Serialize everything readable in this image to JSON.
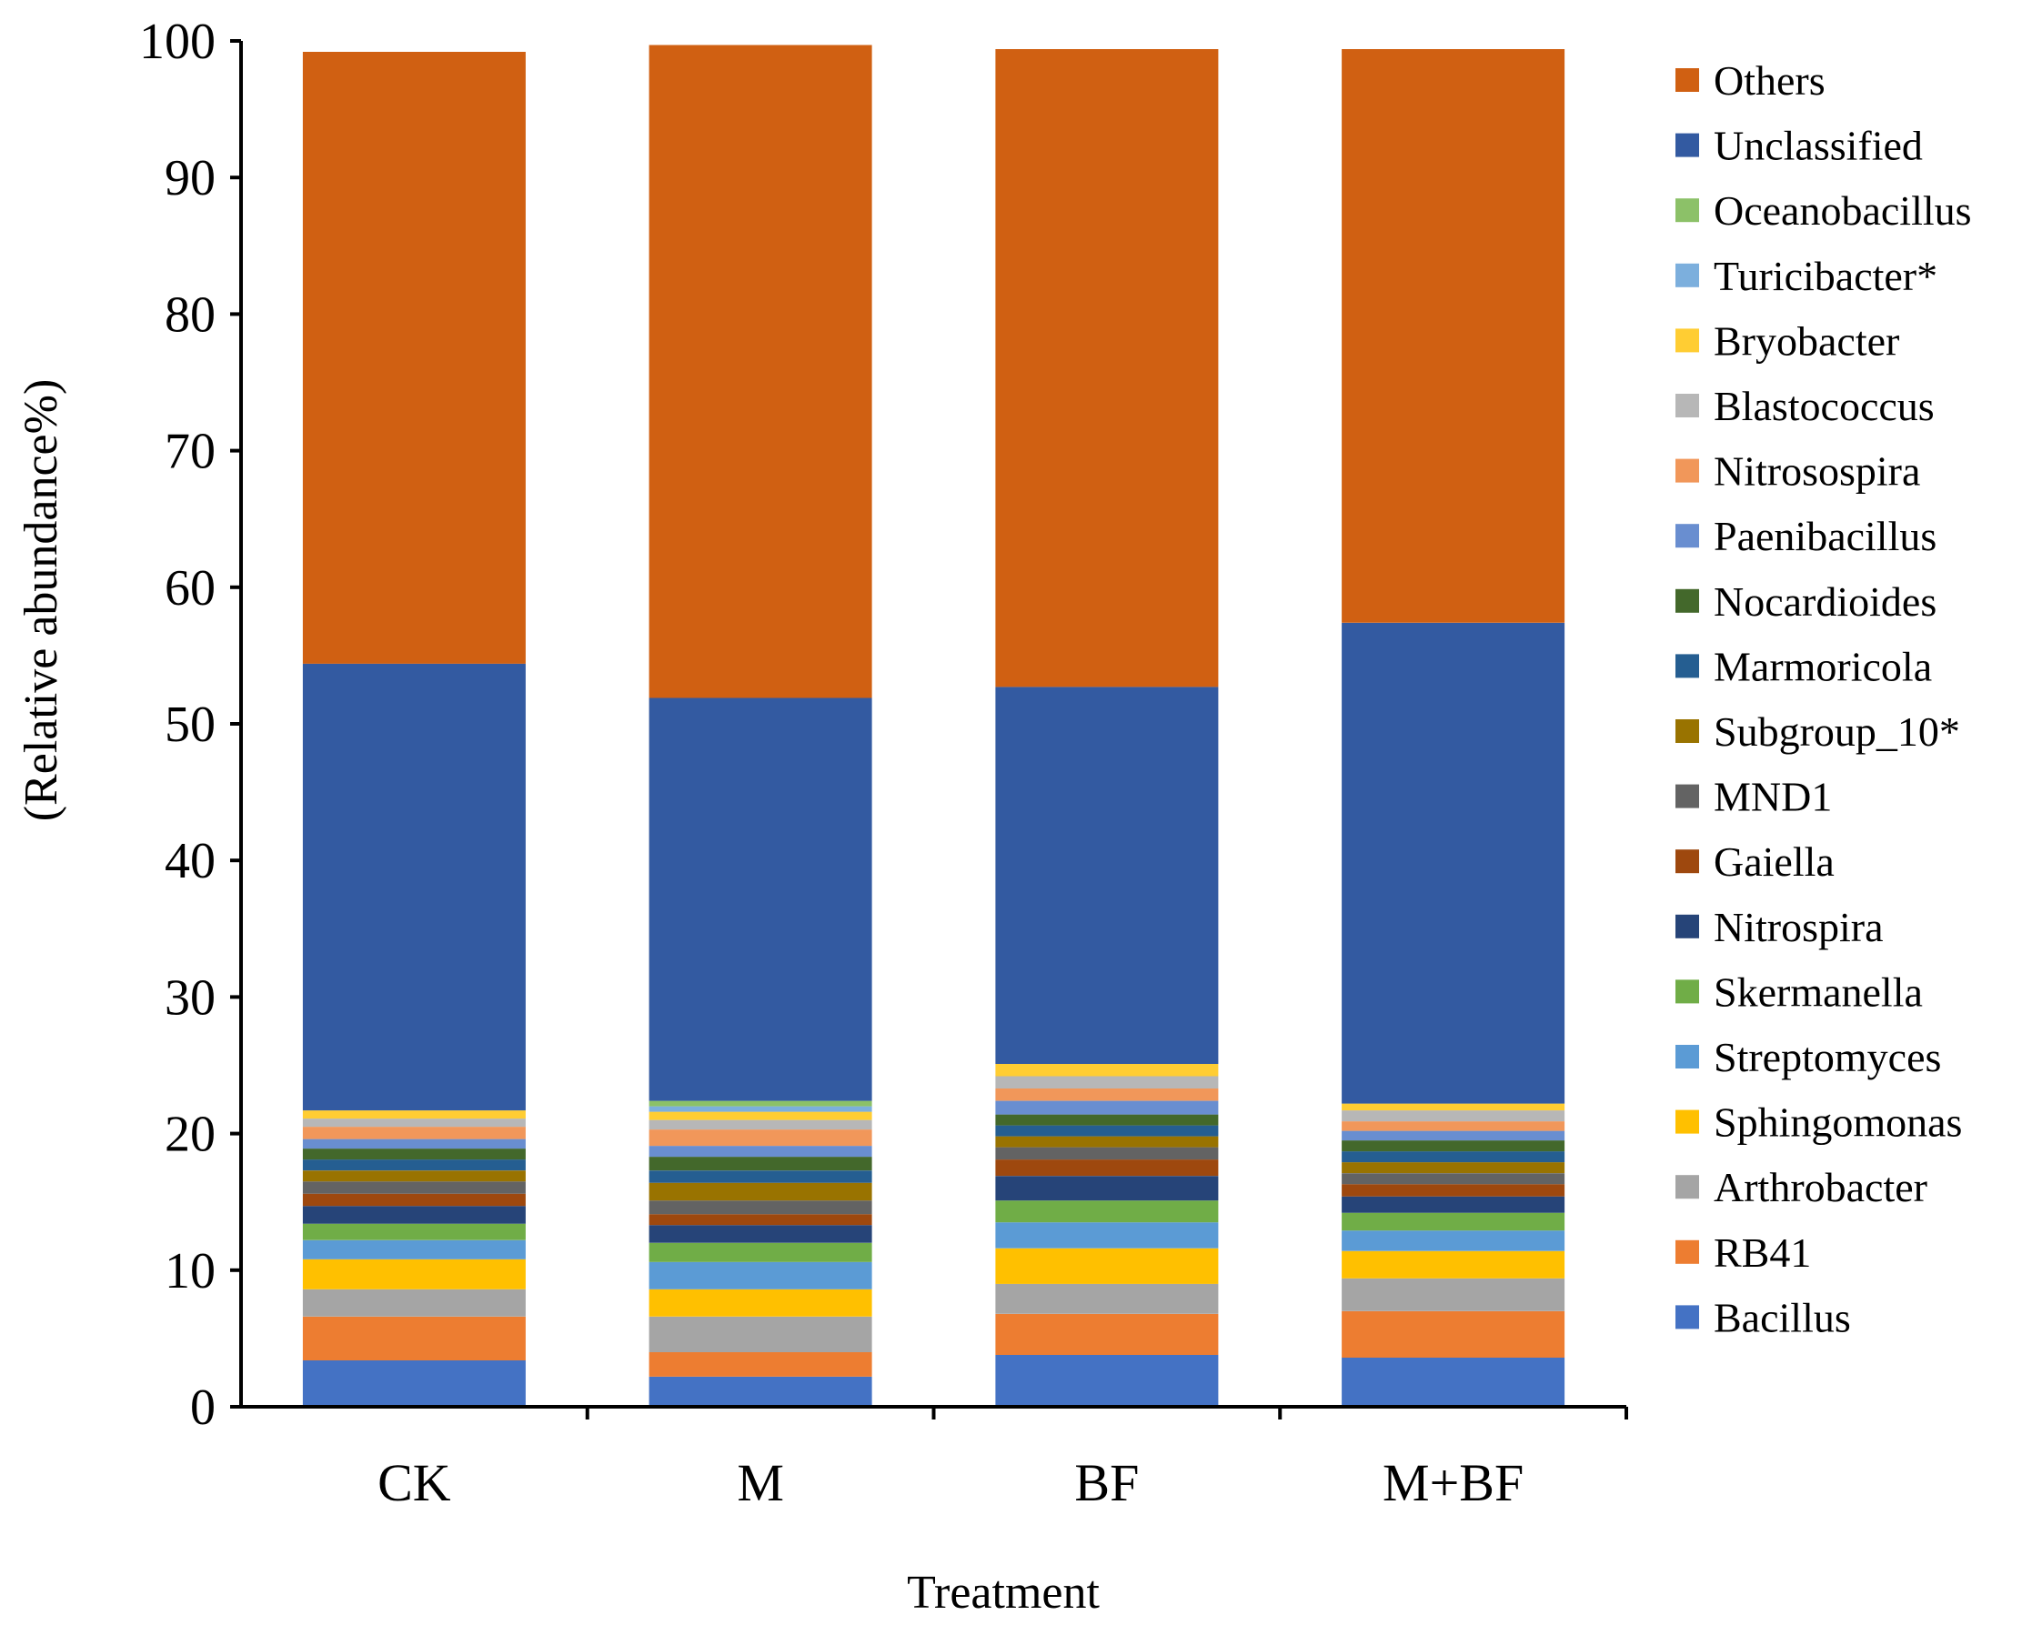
{
  "chart_data": {
    "type": "bar",
    "stacked": true,
    "title": "",
    "xlabel": "Treatment",
    "ylabel": "(Relative abundance%)",
    "ylim": [
      0,
      100
    ],
    "yticks": [
      "0",
      "10",
      "20",
      "30",
      "40",
      "50",
      "60",
      "70",
      "80",
      "90",
      "100"
    ],
    "legend_position": "right",
    "categories": [
      "CK",
      "M",
      "BF",
      "M+BF"
    ],
    "series": [
      {
        "name": "Bacillus",
        "color": "#4472C4",
        "values": [
          3.4,
          2.2,
          3.8,
          3.6
        ]
      },
      {
        "name": "RB41",
        "color": "#ED7D31",
        "values": [
          3.2,
          1.8,
          3.0,
          3.4
        ]
      },
      {
        "name": "Arthrobacter",
        "color": "#A5A5A5",
        "values": [
          2.0,
          2.6,
          2.2,
          2.4
        ]
      },
      {
        "name": "Sphingomonas",
        "color": "#FFC000",
        "values": [
          2.2,
          2.0,
          2.6,
          2.0
        ]
      },
      {
        "name": "Streptomyces",
        "color": "#5B9BD5",
        "values": [
          1.4,
          2.0,
          1.9,
          1.5
        ]
      },
      {
        "name": "Skermanella",
        "color": "#70AD47",
        "values": [
          1.2,
          1.4,
          1.6,
          1.3
        ]
      },
      {
        "name": "Nitrospira",
        "color": "#264478",
        "values": [
          1.3,
          1.3,
          1.8,
          1.2
        ]
      },
      {
        "name": "Gaiella",
        "color": "#9E480E",
        "values": [
          0.9,
          0.8,
          1.2,
          0.9
        ]
      },
      {
        "name": "MND1",
        "color": "#636363",
        "values": [
          0.9,
          1.0,
          0.9,
          0.8
        ]
      },
      {
        "name": "Subgroup_10*",
        "color": "#997300",
        "values": [
          0.8,
          1.3,
          0.8,
          0.8
        ]
      },
      {
        "name": "Marmoricola",
        "color": "#255E91",
        "values": [
          0.8,
          0.9,
          0.8,
          0.8
        ]
      },
      {
        "name": "Nocardioides",
        "color": "#43682B",
        "values": [
          0.8,
          1.0,
          0.8,
          0.8
        ]
      },
      {
        "name": "Paenibacillus",
        "color": "#698ED0",
        "values": [
          0.7,
          0.8,
          1.0,
          0.7
        ]
      },
      {
        "name": "Nitrosospira",
        "color": "#F1975A",
        "values": [
          0.9,
          1.2,
          0.9,
          0.7
        ]
      },
      {
        "name": "Blastococcus",
        "color": "#B7B7B7",
        "values": [
          0.6,
          0.7,
          0.9,
          0.8
        ]
      },
      {
        "name": "Bryobacter",
        "color": "#FFCD33",
        "values": [
          0.6,
          0.6,
          0.9,
          0.5
        ]
      },
      {
        "name": "Turicibacter*",
        "color": "#7CAFDD",
        "values": [
          0.0,
          0.4,
          0.0,
          0.0
        ]
      },
      {
        "name": "Oceanobacillus",
        "color": "#8CC168",
        "values": [
          0.0,
          0.4,
          0.0,
          0.0
        ]
      },
      {
        "name": "Unclassified",
        "color": "#335AA1",
        "values": [
          32.7,
          29.5,
          27.6,
          35.2
        ]
      },
      {
        "name": "Others",
        "color": "#D06012",
        "values": [
          44.8,
          47.8,
          46.7,
          42.0
        ]
      }
    ]
  }
}
